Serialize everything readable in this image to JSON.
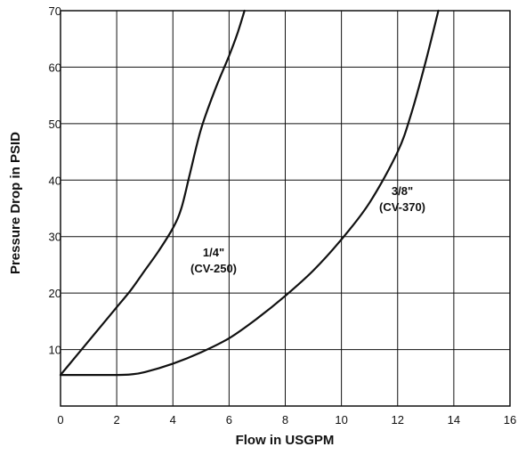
{
  "chart_data": {
    "type": "line",
    "xlabel": "Flow in USGPM",
    "ylabel": "Pressure Drop in PSID",
    "xlim": [
      0,
      16
    ],
    "ylim": [
      0,
      70
    ],
    "xticks": [
      0,
      2,
      4,
      6,
      8,
      10,
      12,
      14,
      16
    ],
    "yticks": [
      10,
      20,
      30,
      40,
      50,
      60,
      70
    ],
    "grid": true,
    "line_color": "#111111",
    "series": [
      {
        "name": "1/4\"\n(CV-250)",
        "label_lines": [
          "1/4\"",
          "(CV-250)"
        ],
        "x": [
          0,
          0.5,
          1,
          1.5,
          2,
          2.5,
          3,
          3.5,
          4,
          4.3,
          4.6,
          5,
          5.5,
          6,
          6.3,
          6.55
        ],
        "y": [
          5.5,
          8.5,
          11.5,
          14.5,
          17.5,
          20.5,
          24,
          27.5,
          31.5,
          35,
          41,
          49,
          56,
          62,
          66,
          70
        ]
      },
      {
        "name": "3/8\"\n(CV-370)",
        "label_lines": [
          "3/8\"",
          "(CV-370)"
        ],
        "x": [
          0,
          1,
          2,
          2.5,
          3,
          4,
          5,
          6,
          7,
          8,
          9,
          10,
          11,
          12,
          12.5,
          13,
          13.45
        ],
        "y": [
          5.5,
          5.5,
          5.5,
          5.6,
          6,
          7.5,
          9.5,
          12,
          15.5,
          19.5,
          24,
          29.5,
          36,
          45,
          52,
          61,
          70
        ]
      }
    ]
  }
}
